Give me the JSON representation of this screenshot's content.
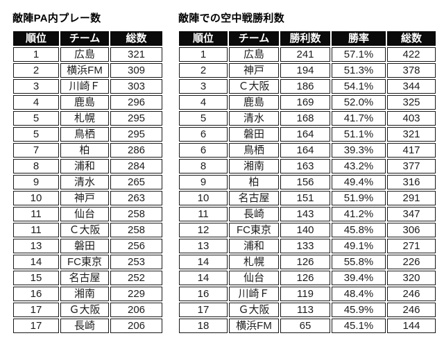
{
  "chart_data": [
    {
      "type": "table",
      "title": "敵陣PA内プレー数",
      "columns": [
        "順位",
        "チーム",
        "総数"
      ],
      "rows": [
        [
          "1",
          "広島",
          "321"
        ],
        [
          "2",
          "横浜FM",
          "309"
        ],
        [
          "3",
          "川崎Ｆ",
          "303"
        ],
        [
          "4",
          "鹿島",
          "296"
        ],
        [
          "5",
          "札幌",
          "295"
        ],
        [
          "5",
          "鳥栖",
          "295"
        ],
        [
          "7",
          "柏",
          "286"
        ],
        [
          "8",
          "浦和",
          "284"
        ],
        [
          "9",
          "清水",
          "265"
        ],
        [
          "10",
          "神戸",
          "263"
        ],
        [
          "11",
          "仙台",
          "258"
        ],
        [
          "11",
          "Ｃ大阪",
          "258"
        ],
        [
          "13",
          "磐田",
          "256"
        ],
        [
          "14",
          "FC東京",
          "253"
        ],
        [
          "15",
          "名古屋",
          "252"
        ],
        [
          "16",
          "湘南",
          "229"
        ],
        [
          "17",
          "Ｇ大阪",
          "206"
        ],
        [
          "17",
          "長崎",
          "206"
        ]
      ]
    },
    {
      "type": "table",
      "title": "敵陣での空中戦勝利数",
      "columns": [
        "順位",
        "チーム",
        "勝利数",
        "勝率",
        "総数"
      ],
      "rows": [
        [
          "1",
          "広島",
          "241",
          "57.1%",
          "422"
        ],
        [
          "2",
          "神戸",
          "194",
          "51.3%",
          "378"
        ],
        [
          "3",
          "Ｃ大阪",
          "186",
          "54.1%",
          "344"
        ],
        [
          "4",
          "鹿島",
          "169",
          "52.0%",
          "325"
        ],
        [
          "5",
          "清水",
          "168",
          "41.7%",
          "403"
        ],
        [
          "6",
          "磐田",
          "164",
          "51.1%",
          "321"
        ],
        [
          "6",
          "鳥栖",
          "164",
          "39.3%",
          "417"
        ],
        [
          "8",
          "湘南",
          "163",
          "43.2%",
          "377"
        ],
        [
          "9",
          "柏",
          "156",
          "49.4%",
          "316"
        ],
        [
          "10",
          "名古屋",
          "151",
          "51.9%",
          "291"
        ],
        [
          "11",
          "長崎",
          "143",
          "41.2%",
          "347"
        ],
        [
          "12",
          "FC東京",
          "140",
          "45.8%",
          "306"
        ],
        [
          "13",
          "浦和",
          "133",
          "49.1%",
          "271"
        ],
        [
          "14",
          "札幌",
          "126",
          "55.8%",
          "226"
        ],
        [
          "14",
          "仙台",
          "126",
          "39.4%",
          "320"
        ],
        [
          "16",
          "川崎Ｆ",
          "119",
          "48.4%",
          "246"
        ],
        [
          "17",
          "Ｇ大阪",
          "113",
          "45.9%",
          "246"
        ],
        [
          "18",
          "横浜FM",
          "65",
          "45.1%",
          "144"
        ]
      ]
    }
  ],
  "colors": {
    "header_bg": "#0a0a0a",
    "header_text": "#ffffff",
    "cell_border": "#161616",
    "text": "#1c1c1c",
    "background": "#ffffff"
  }
}
